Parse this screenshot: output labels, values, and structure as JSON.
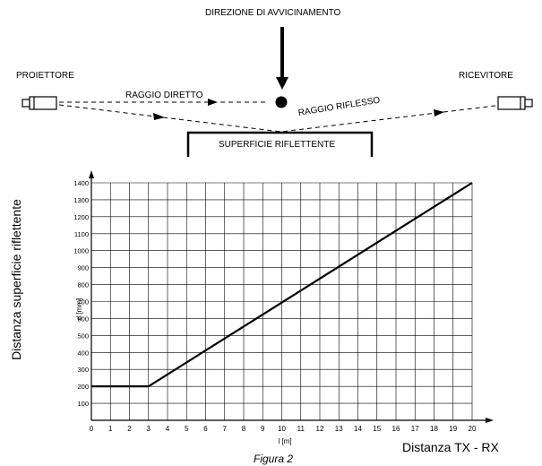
{
  "diagram": {
    "approach_label": "DIREZIONE DI AVVICINAMENTO",
    "projector_label": "PROIETTORE",
    "receiver_label": "RICEVITORE",
    "direct_ray_label": "RAGGIO DIRETTO",
    "reflected_ray_label": "RAGGIO RIFLESSO",
    "surface_label": "SUPERFICIE RIFLETTENTE"
  },
  "chart_data": {
    "type": "line",
    "title": "",
    "xlabel": "l [m]",
    "ylabel": "d [mm]",
    "outer_ylabel": "Distanza superficie riflettente",
    "outer_xlabel": "Distanza TX - RX",
    "xlim": [
      0,
      20
    ],
    "ylim": [
      0,
      1400
    ],
    "x_ticks": [
      "0",
      "1",
      "2",
      "3",
      "4",
      "5",
      "6",
      "7",
      "8",
      "9",
      "10",
      "11",
      "12",
      "13",
      "14",
      "15",
      "16",
      "17",
      "18",
      "19",
      "20"
    ],
    "y_ticks": [
      "100",
      "200",
      "300",
      "400",
      "500",
      "600",
      "700",
      "800",
      "900",
      "1000",
      "1100",
      "1200",
      "1300",
      "1400"
    ],
    "grid": true,
    "series": [
      {
        "x": [
          0,
          3,
          20
        ],
        "y": [
          200,
          200,
          1400
        ]
      }
    ]
  },
  "caption": "Figura 2"
}
